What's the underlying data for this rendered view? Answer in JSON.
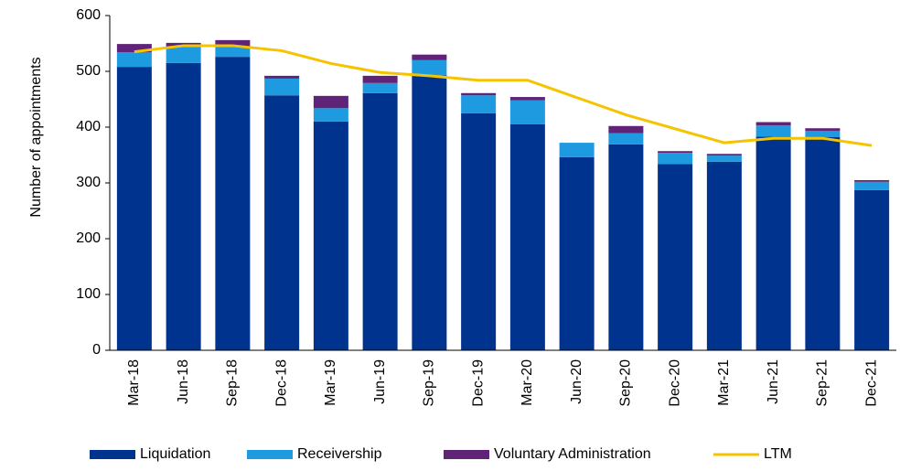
{
  "chart_data": {
    "type": "bar",
    "stacked": true,
    "ylabel": "Number of appointments",
    "categories": [
      "Mar-18",
      "Jun-18",
      "Sep-18",
      "Dec-18",
      "Mar-19",
      "Jun-19",
      "Sep-19",
      "Dec-19",
      "Mar-20",
      "Jun-20",
      "Sep-20",
      "Dec-20",
      "Mar-21",
      "Jun-21",
      "Sep-21",
      "Dec-21"
    ],
    "series": [
      {
        "name": "Liquidation",
        "color": "#00338d",
        "values": [
          508,
          515,
          526,
          457,
          410,
          461,
          493,
          425,
          405,
          346,
          369,
          334,
          338,
          383,
          382,
          287
        ]
      },
      {
        "name": "Receivership",
        "color": "#1e9be0",
        "values": [
          26,
          28,
          17,
          30,
          24,
          18,
          27,
          32,
          43,
          26,
          20,
          20,
          11,
          20,
          11,
          15
        ]
      },
      {
        "name": "Voluntary Administration",
        "color": "#5f2378",
        "values": [
          15,
          8,
          13,
          5,
          22,
          13,
          10,
          4,
          6,
          0,
          13,
          3,
          3,
          6,
          5,
          3
        ]
      },
      {
        "name": "LTM",
        "type": "line",
        "color": "#f5c400",
        "values": [
          535,
          546,
          546,
          537,
          514,
          498,
          492,
          484,
          484,
          453,
          422,
          397,
          372,
          380,
          380,
          367
        ]
      }
    ],
    "ylim": [
      0,
      600
    ],
    "yticks": [
      0,
      100,
      200,
      300,
      400,
      500,
      600
    ]
  }
}
